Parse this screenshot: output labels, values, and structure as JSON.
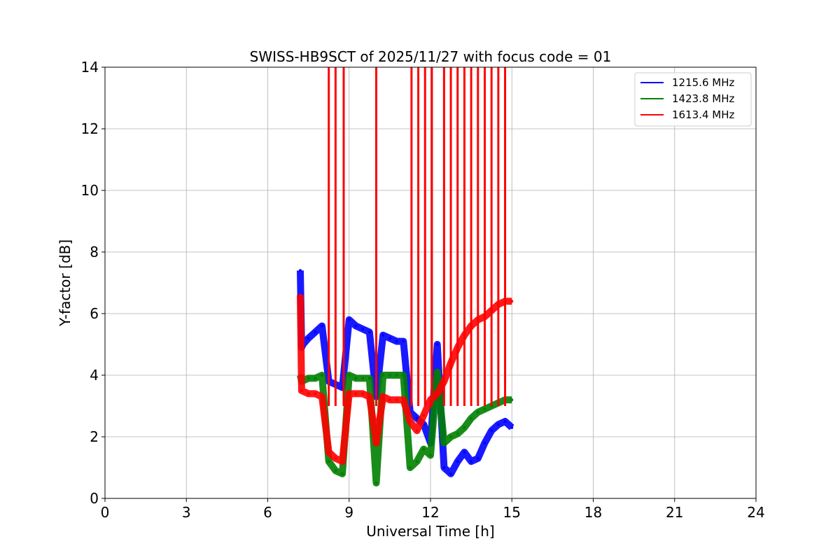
{
  "chart_data": {
    "type": "line",
    "title": "SWISS-HB9SCT of 2025/11/27 with focus code = 01",
    "xlabel": "Universal Time [h]",
    "ylabel": "Y-factor [dB]",
    "xlim": [
      0,
      24
    ],
    "ylim": [
      0,
      14
    ],
    "xticks": [
      0,
      3,
      6,
      9,
      12,
      15,
      18,
      21,
      24
    ],
    "yticks": [
      0,
      2,
      4,
      6,
      8,
      10,
      12,
      14
    ],
    "grid": true,
    "legend_position": "top-right",
    "series": [
      {
        "name": "1215.6 MHz",
        "color": "#0000ff",
        "x": [
          7.2,
          7.25,
          7.3,
          7.5,
          7.75,
          8.0,
          8.25,
          8.5,
          8.75,
          9.0,
          9.25,
          9.5,
          9.75,
          10.0,
          10.25,
          10.5,
          10.75,
          11.0,
          11.25,
          11.5,
          11.75,
          12.0,
          12.25,
          12.5,
          12.75,
          13.0,
          13.25,
          13.5,
          13.75,
          14.0,
          14.25,
          14.5,
          14.75,
          15.0
        ],
        "y": [
          7.4,
          4.9,
          5.0,
          5.2,
          5.4,
          5.6,
          3.8,
          3.7,
          3.6,
          5.8,
          5.6,
          5.5,
          5.4,
          3.3,
          5.3,
          5.2,
          5.1,
          5.1,
          2.8,
          2.6,
          2.4,
          1.8,
          5.0,
          1.0,
          0.8,
          1.2,
          1.5,
          1.2,
          1.3,
          1.8,
          2.2,
          2.4,
          2.5,
          2.3
        ]
      },
      {
        "name": "1423.8 MHz",
        "color": "#008000",
        "x": [
          7.2,
          7.25,
          7.5,
          7.75,
          8.0,
          8.25,
          8.5,
          8.75,
          9.0,
          9.25,
          9.5,
          9.75,
          10.0,
          10.25,
          10.5,
          10.75,
          11.0,
          11.25,
          11.5,
          11.75,
          12.0,
          12.25,
          12.5,
          12.75,
          13.0,
          13.25,
          13.5,
          13.75,
          14.0,
          14.25,
          14.5,
          14.75,
          15.0
        ],
        "y": [
          4.0,
          3.8,
          3.9,
          3.9,
          4.0,
          1.2,
          0.9,
          0.8,
          4.0,
          3.9,
          3.9,
          3.9,
          0.5,
          4.0,
          4.0,
          4.0,
          4.0,
          1.0,
          1.2,
          1.6,
          1.4,
          4.1,
          1.8,
          2.0,
          2.1,
          2.3,
          2.6,
          2.8,
          2.9,
          3.0,
          3.1,
          3.2,
          3.2
        ]
      },
      {
        "name": "1613.4 MHz",
        "color": "#ff0000",
        "x": [
          7.2,
          7.25,
          7.5,
          7.75,
          8.0,
          8.25,
          8.5,
          8.75,
          9.0,
          9.25,
          9.5,
          9.75,
          10.0,
          10.25,
          10.5,
          10.75,
          11.0,
          11.25,
          11.5,
          11.75,
          12.0,
          12.25,
          12.5,
          12.75,
          13.0,
          13.25,
          13.5,
          13.75,
          14.0,
          14.25,
          14.5,
          14.75,
          15.0
        ],
        "y": [
          6.6,
          3.5,
          3.4,
          3.4,
          3.3,
          1.5,
          1.3,
          1.2,
          3.4,
          3.4,
          3.4,
          3.3,
          1.8,
          3.3,
          3.2,
          3.2,
          3.2,
          2.5,
          2.2,
          2.7,
          3.2,
          3.4,
          3.8,
          4.4,
          4.9,
          5.3,
          5.6,
          5.8,
          5.9,
          6.1,
          6.3,
          6.4,
          6.4
        ]
      }
    ],
    "spike_series": "1613.4 MHz",
    "spikes_x": [
      8.25,
      8.5,
      8.8,
      10.0,
      11.3,
      11.55,
      11.8,
      12.05,
      12.5,
      12.75,
      13.0,
      13.25,
      13.5,
      13.75,
      14.0,
      14.25,
      14.5,
      14.75
    ],
    "spike_peak": 14
  }
}
